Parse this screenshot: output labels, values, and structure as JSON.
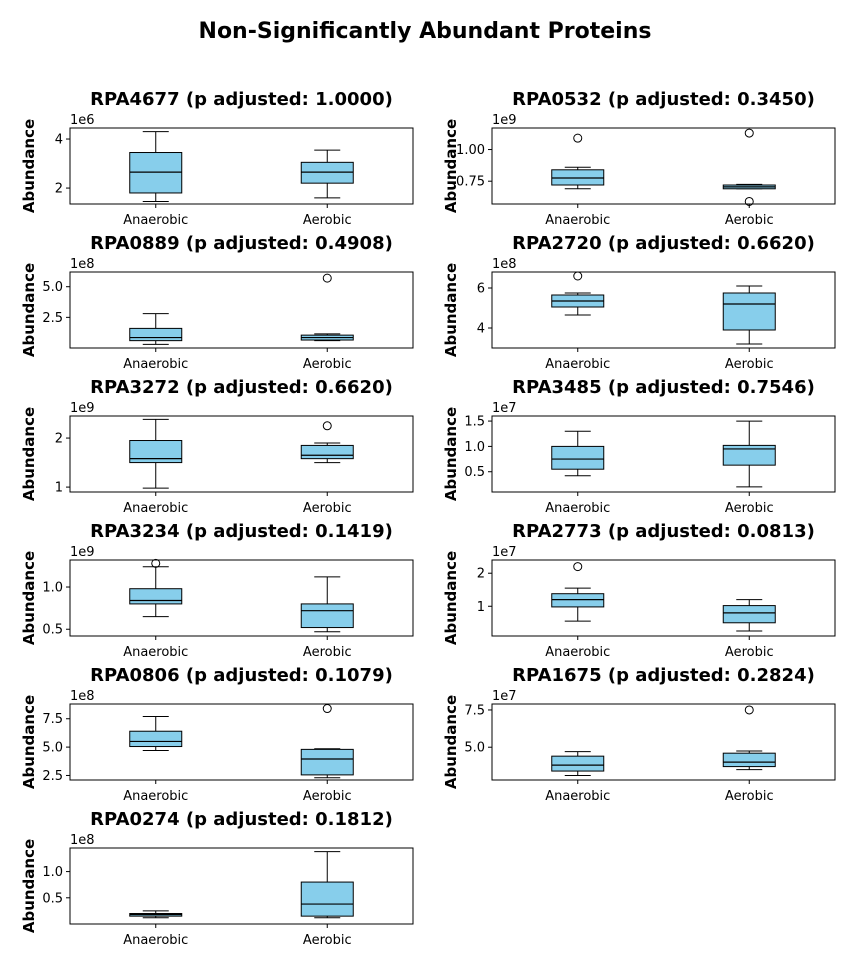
{
  "figure_title": "Non-Significantly Abundant Proteins",
  "colors": {
    "box_fill": "#87ceeb",
    "line": "#000000",
    "background": "#ffffff"
  },
  "chart_data": [
    {
      "type": "boxplot",
      "title": "RPA4677 (p adjusted: 1.0000)",
      "ylabel": "Abundance",
      "offset_label": "1e6",
      "ylim": [
        1.35,
        4.45
      ],
      "yticks": [
        2,
        4
      ],
      "ytick_labels": [
        "2",
        "4"
      ],
      "categories": [
        "Anaerobic",
        "Aerobic"
      ],
      "boxes": [
        {
          "whisker_low": 1.45,
          "q1": 1.8,
          "median": 2.65,
          "q3": 3.45,
          "whisker_high": 4.3,
          "outliers": []
        },
        {
          "whisker_low": 1.6,
          "q1": 2.2,
          "median": 2.65,
          "q3": 3.05,
          "whisker_high": 3.55,
          "outliers": []
        }
      ]
    },
    {
      "type": "boxplot",
      "title": "RPA0532 (p adjusted: 0.3450)",
      "ylabel": "Abundance",
      "offset_label": "1e9",
      "ylim": [
        0.57,
        1.17
      ],
      "yticks": [
        0.75,
        1.0
      ],
      "ytick_labels": [
        "0.75",
        "1.00"
      ],
      "categories": [
        "Anaerobic",
        "Aerobic"
      ],
      "boxes": [
        {
          "whisker_low": 0.69,
          "q1": 0.72,
          "median": 0.775,
          "q3": 0.84,
          "whisker_high": 0.86,
          "outliers": [
            1.09
          ]
        },
        {
          "whisker_low": 0.69,
          "q1": 0.69,
          "median": 0.705,
          "q3": 0.72,
          "whisker_high": 0.725,
          "outliers": [
            1.13,
            0.59
          ]
        }
      ]
    },
    {
      "type": "boxplot",
      "title": "RPA0889 (p adjusted: 0.4908)",
      "ylabel": "Abundance",
      "offset_label": "1e8",
      "ylim": [
        0.0,
        6.2
      ],
      "yticks": [
        2.5,
        5.0
      ],
      "ytick_labels": [
        "2.5",
        "5.0"
      ],
      "categories": [
        "Anaerobic",
        "Aerobic"
      ],
      "boxes": [
        {
          "whisker_low": 0.3,
          "q1": 0.6,
          "median": 0.85,
          "q3": 1.6,
          "whisker_high": 2.8,
          "outliers": []
        },
        {
          "whisker_low": 0.6,
          "q1": 0.65,
          "median": 0.85,
          "q3": 1.05,
          "whisker_high": 1.15,
          "outliers": [
            5.7
          ]
        }
      ]
    },
    {
      "type": "boxplot",
      "title": "RPA2720 (p adjusted: 0.6620)",
      "ylabel": "Abundance",
      "offset_label": "1e8",
      "ylim": [
        3.0,
        6.8
      ],
      "yticks": [
        4,
        6
      ],
      "ytick_labels": [
        "4",
        "6"
      ],
      "categories": [
        "Anaerobic",
        "Aerobic"
      ],
      "boxes": [
        {
          "whisker_low": 4.65,
          "q1": 5.05,
          "median": 5.35,
          "q3": 5.65,
          "whisker_high": 5.75,
          "outliers": [
            6.6
          ]
        },
        {
          "whisker_low": 3.2,
          "q1": 3.9,
          "median": 5.2,
          "q3": 5.75,
          "whisker_high": 6.1,
          "outliers": []
        }
      ]
    },
    {
      "type": "boxplot",
      "title": "RPA3272 (p adjusted: 0.6620)",
      "ylabel": "Abundance",
      "offset_label": "1e9",
      "ylim": [
        0.9,
        2.45
      ],
      "yticks": [
        1,
        2
      ],
      "ytick_labels": [
        "1",
        "2"
      ],
      "categories": [
        "Anaerobic",
        "Aerobic"
      ],
      "boxes": [
        {
          "whisker_low": 0.98,
          "q1": 1.5,
          "median": 1.58,
          "q3": 1.95,
          "whisker_high": 2.38,
          "outliers": []
        },
        {
          "whisker_low": 1.5,
          "q1": 1.58,
          "median": 1.65,
          "q3": 1.85,
          "whisker_high": 1.9,
          "outliers": [
            2.25
          ]
        }
      ]
    },
    {
      "type": "boxplot",
      "title": "RPA3485 (p adjusted: 0.7546)",
      "ylabel": "Abundance",
      "offset_label": "1e7",
      "ylim": [
        0.1,
        1.6
      ],
      "yticks": [
        0.5,
        1.0,
        1.5
      ],
      "ytick_labels": [
        "0.5",
        "1.0",
        "1.5"
      ],
      "categories": [
        "Anaerobic",
        "Aerobic"
      ],
      "boxes": [
        {
          "whisker_low": 0.42,
          "q1": 0.55,
          "median": 0.75,
          "q3": 1.0,
          "whisker_high": 1.3,
          "outliers": []
        },
        {
          "whisker_low": 0.2,
          "q1": 0.63,
          "median": 0.95,
          "q3": 1.02,
          "whisker_high": 1.5,
          "outliers": []
        }
      ]
    },
    {
      "type": "boxplot",
      "title": "RPA3234 (p adjusted: 0.1419)",
      "ylabel": "Abundance",
      "offset_label": "1e9",
      "ylim": [
        0.42,
        1.32
      ],
      "yticks": [
        0.5,
        1.0
      ],
      "ytick_labels": [
        "0.5",
        "1.0"
      ],
      "categories": [
        "Anaerobic",
        "Aerobic"
      ],
      "boxes": [
        {
          "whisker_low": 0.65,
          "q1": 0.8,
          "median": 0.84,
          "q3": 0.98,
          "whisker_high": 1.24,
          "outliers": [
            1.28
          ]
        },
        {
          "whisker_low": 0.47,
          "q1": 0.52,
          "median": 0.72,
          "q3": 0.8,
          "whisker_high": 1.12,
          "outliers": []
        }
      ]
    },
    {
      "type": "boxplot",
      "title": "RPA2773 (p adjusted: 0.0813)",
      "ylabel": "Abundance",
      "offset_label": "1e7",
      "ylim": [
        0.1,
        2.4
      ],
      "yticks": [
        1,
        2
      ],
      "ytick_labels": [
        "1",
        "2"
      ],
      "categories": [
        "Anaerobic",
        "Aerobic"
      ],
      "boxes": [
        {
          "whisker_low": 0.55,
          "q1": 0.98,
          "median": 1.2,
          "q3": 1.38,
          "whisker_high": 1.55,
          "outliers": [
            2.2
          ]
        },
        {
          "whisker_low": 0.25,
          "q1": 0.5,
          "median": 0.8,
          "q3": 1.02,
          "whisker_high": 1.2,
          "outliers": []
        }
      ]
    },
    {
      "type": "boxplot",
      "title": "RPA0806 (p adjusted: 0.1079)",
      "ylabel": "Abundance",
      "offset_label": "1e8",
      "ylim": [
        2.1,
        8.8
      ],
      "yticks": [
        2.5,
        5.0,
        7.5
      ],
      "ytick_labels": [
        "2.5",
        "5.0",
        "7.5"
      ],
      "categories": [
        "Anaerobic",
        "Aerobic"
      ],
      "boxes": [
        {
          "whisker_low": 4.7,
          "q1": 5.05,
          "median": 5.5,
          "q3": 6.4,
          "whisker_high": 7.7,
          "outliers": []
        },
        {
          "whisker_low": 2.3,
          "q1": 2.55,
          "median": 3.95,
          "q3": 4.8,
          "whisker_high": 4.85,
          "outliers": [
            8.4
          ]
        }
      ]
    },
    {
      "type": "boxplot",
      "title": "RPA1675 (p adjusted: 0.2824)",
      "ylabel": "Abundance",
      "offset_label": "1e7",
      "ylim": [
        2.8,
        7.9
      ],
      "yticks": [
        5.0,
        7.5
      ],
      "ytick_labels": [
        "5.0",
        "7.5"
      ],
      "categories": [
        "Anaerobic",
        "Aerobic"
      ],
      "boxes": [
        {
          "whisker_low": 3.1,
          "q1": 3.4,
          "median": 3.8,
          "q3": 4.4,
          "whisker_high": 4.7,
          "outliers": []
        },
        {
          "whisker_low": 3.5,
          "q1": 3.7,
          "median": 4.0,
          "q3": 4.6,
          "whisker_high": 4.75,
          "outliers": [
            7.5
          ]
        }
      ]
    },
    {
      "type": "boxplot",
      "title": "RPA0274 (p adjusted: 0.1812)",
      "ylabel": "Abundance",
      "offset_label": "1e8",
      "ylim": [
        0.0,
        1.45
      ],
      "yticks": [
        0.5,
        1.0
      ],
      "ytick_labels": [
        "0.5",
        "1.0"
      ],
      "categories": [
        "Anaerobic",
        "Aerobic"
      ],
      "boxes": [
        {
          "whisker_low": 0.12,
          "q1": 0.15,
          "median": 0.18,
          "q3": 0.2,
          "whisker_high": 0.25,
          "outliers": []
        },
        {
          "whisker_low": 0.12,
          "q1": 0.15,
          "median": 0.38,
          "q3": 0.8,
          "whisker_high": 1.38,
          "outliers": []
        }
      ]
    }
  ]
}
